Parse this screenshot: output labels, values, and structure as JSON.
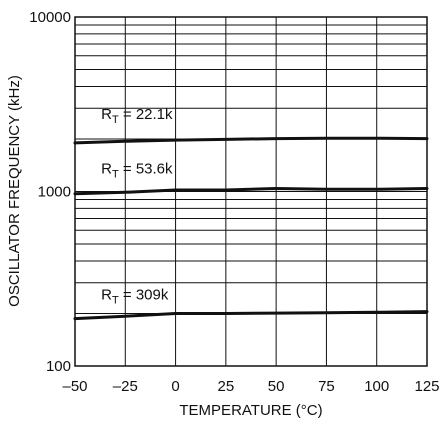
{
  "chart_data": {
    "type": "line",
    "title": "",
    "xlabel": "TEMPERATURE (°C)",
    "ylabel": "OSCILLATOR FREQUENCY (kHz)",
    "xlim": [
      -50,
      125
    ],
    "ylim": [
      100,
      10000
    ],
    "yscale": "log",
    "grid": true,
    "x_ticks": [
      -50,
      -25,
      0,
      25,
      50,
      75,
      100,
      125
    ],
    "x_tick_labels": [
      "–50",
      "–25",
      "0",
      "25",
      "50",
      "75",
      "100",
      "125"
    ],
    "y_tick_labels": [
      "100",
      "1000",
      "10000"
    ],
    "y_tick_values": [
      100,
      1000,
      10000
    ],
    "series": [
      {
        "label_main": "R",
        "label_sub": "T",
        "label_rest": " = 22.1k",
        "label_x": -37,
        "label_y": 2600,
        "x": [
          -50,
          -25,
          0,
          25,
          50,
          75,
          100,
          125
        ],
        "values": [
          1900,
          1940,
          1970,
          1990,
          2010,
          2020,
          2020,
          2010
        ]
      },
      {
        "label_main": "R",
        "label_sub": "T",
        "label_rest": " = 53.6k",
        "label_x": -37,
        "label_y": 1270,
        "x": [
          -50,
          -25,
          0,
          25,
          50,
          75,
          100,
          125
        ],
        "values": [
          970,
          990,
          1020,
          1020,
          1040,
          1030,
          1030,
          1040
        ]
      },
      {
        "label_main": "R",
        "label_sub": "T",
        "label_rest": " = 309k",
        "label_x": -37,
        "label_y": 240,
        "x": [
          -50,
          -25,
          0,
          25,
          50,
          75,
          100,
          125
        ],
        "values": [
          187,
          193,
          200,
          200,
          201,
          202,
          203,
          205
        ]
      }
    ]
  }
}
